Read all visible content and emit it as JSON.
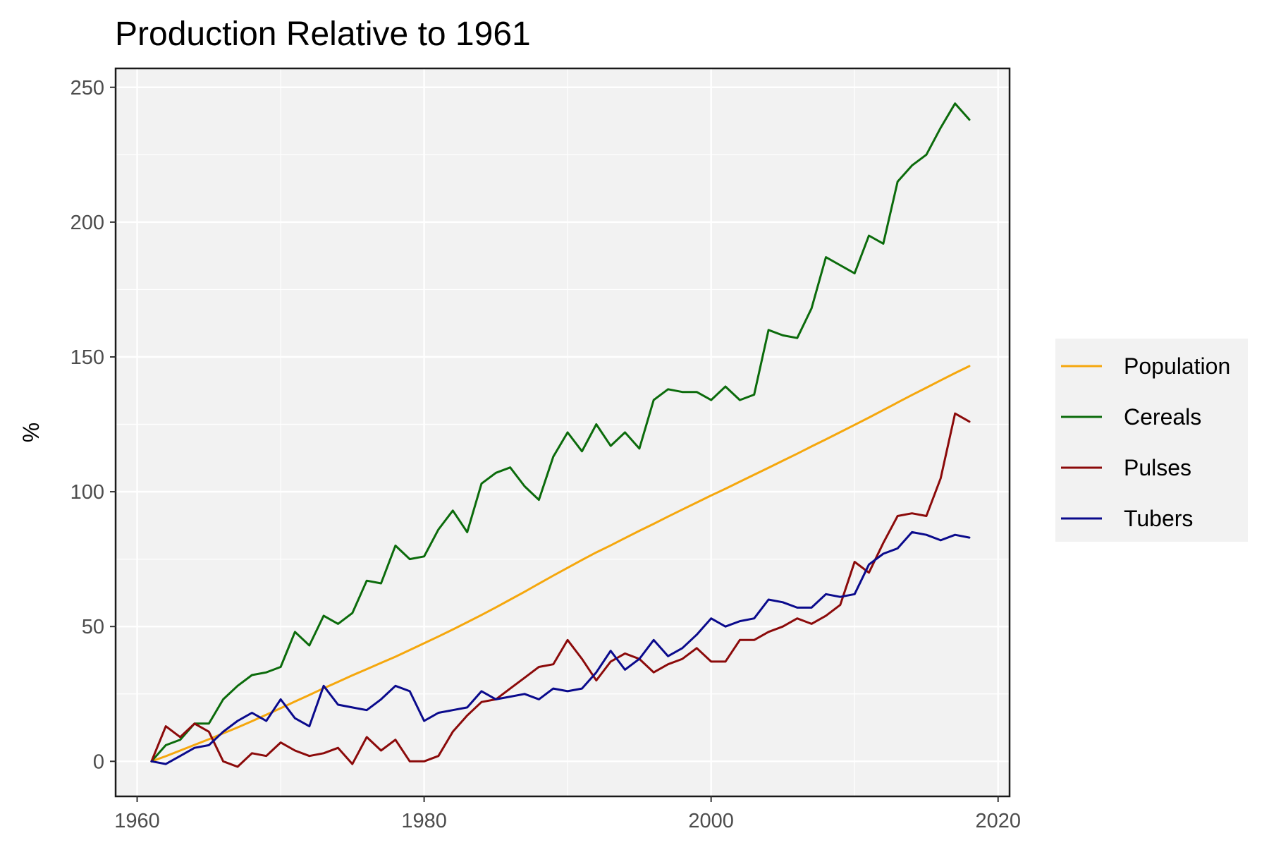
{
  "chart_data": {
    "type": "line",
    "title": "Production Relative to 1961",
    "xlabel": "",
    "ylabel": "%",
    "xlim": [
      1958.5,
      2020.8
    ],
    "ylim": [
      -13,
      257
    ],
    "x_ticks": [
      1960,
      1980,
      2000,
      2020
    ],
    "y_ticks": [
      0,
      50,
      100,
      150,
      200,
      250
    ],
    "grid": true,
    "legend_position": "right",
    "x": [
      1961,
      1962,
      1963,
      1964,
      1965,
      1966,
      1967,
      1968,
      1969,
      1970,
      1971,
      1972,
      1973,
      1974,
      1975,
      1976,
      1977,
      1978,
      1979,
      1980,
      1981,
      1982,
      1983,
      1984,
      1985,
      1986,
      1987,
      1988,
      1989,
      1990,
      1991,
      1992,
      1993,
      1994,
      1995,
      1996,
      1997,
      1998,
      1999,
      2000,
      2001,
      2002,
      2003,
      2004,
      2005,
      2006,
      2007,
      2008,
      2009,
      2010,
      2011,
      2012,
      2013,
      2014,
      2015,
      2016,
      2017,
      2018
    ],
    "series": [
      {
        "name": "Population",
        "color": "#f5a70d",
        "values": [
          0,
          1.9,
          4.0,
          6.1,
          8.2,
          10.4,
          12.6,
          14.9,
          17.3,
          19.7,
          22.2,
          24.6,
          27.1,
          29.5,
          31.9,
          34.2,
          36.5,
          38.8,
          41.3,
          43.8,
          46.3,
          48.9,
          51.6,
          54.3,
          57.1,
          60.0,
          62.9,
          65.9,
          68.9,
          71.8,
          74.7,
          77.5,
          80.1,
          82.8,
          85.5,
          88.1,
          90.8,
          93.4,
          96.0,
          98.6,
          101.1,
          103.7,
          106.3,
          108.9,
          111.5,
          114.1,
          116.8,
          119.4,
          122.1,
          124.8,
          127.5,
          130.3,
          133.1,
          135.9,
          138.6,
          141.3,
          144.0,
          146.6
        ]
      },
      {
        "name": "Cereals",
        "color": "#0b6b0b",
        "values": [
          0,
          6,
          8,
          14,
          14,
          23,
          28,
          32,
          33,
          35,
          48,
          43,
          54,
          51,
          55,
          67,
          66,
          80,
          75,
          76,
          86,
          93,
          85,
          103,
          107,
          109,
          102,
          97,
          113,
          122,
          115,
          125,
          117,
          122,
          116,
          134,
          138,
          137,
          137,
          134,
          139,
          134,
          136,
          160,
          158,
          157,
          168,
          187,
          184,
          181,
          195,
          192,
          215,
          221,
          225,
          235,
          244,
          238
        ]
      },
      {
        "name": "Pulses",
        "color": "#8b0a0a",
        "values": [
          0,
          13,
          9,
          14,
          11,
          0,
          -2,
          3,
          2,
          7,
          4,
          2,
          3,
          5,
          -1,
          9,
          4,
          8,
          0,
          0,
          2,
          11,
          17,
          22,
          23,
          27,
          31,
          35,
          36,
          45,
          38,
          30,
          37,
          40,
          38,
          33,
          36,
          38,
          42,
          37,
          37,
          45,
          45,
          48,
          50,
          53,
          51,
          54,
          58,
          74,
          70,
          81,
          91,
          92,
          91,
          105,
          129,
          126
        ]
      },
      {
        "name": "Tubers",
        "color": "#0a0a8c",
        "values": [
          0,
          -1,
          2,
          5,
          6,
          11,
          15,
          18,
          15,
          23,
          16,
          13,
          28,
          21,
          20,
          19,
          23,
          28,
          26,
          15,
          18,
          19,
          20,
          26,
          23,
          24,
          25,
          23,
          27,
          26,
          27,
          33,
          41,
          34,
          38,
          45,
          39,
          42,
          47,
          53,
          50,
          52,
          53,
          60,
          59,
          57,
          57,
          62,
          61,
          62,
          73,
          77,
          79,
          85,
          84,
          82,
          84,
          83
        ]
      }
    ]
  }
}
